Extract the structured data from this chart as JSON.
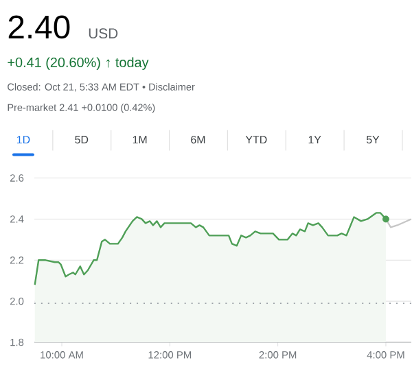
{
  "chart_data": {
    "type": "area",
    "title": "2.40",
    "subtitle": "USD",
    "annotations": [
      "+0.41 (20.60%) ↑ today",
      "Closed: Oct 21, 5:33 AM EDT • Disclaimer",
      "Pre-market 2.41 +0.0100 (0.42%)",
      "1D",
      "5D",
      "1M",
      "6M",
      "YTD",
      "1Y",
      "5Y"
    ],
    "x": [
      9.5,
      9.57,
      9.7,
      9.87,
      9.94,
      9.98,
      10.07,
      10.13,
      10.21,
      10.25,
      10.34,
      10.41,
      10.48,
      10.59,
      10.65,
      10.74,
      10.8,
      10.89,
      11.04,
      11.12,
      11.18,
      11.31,
      11.39,
      11.48,
      11.55,
      11.63,
      11.69,
      11.76,
      11.83,
      11.9,
      11.99,
      12.24,
      12.32,
      12.39,
      12.48,
      12.55,
      12.62,
      12.73,
      13.09,
      13.15,
      13.24,
      13.32,
      13.41,
      13.49,
      13.58,
      13.68,
      13.91,
      14.02,
      14.18,
      14.27,
      14.34,
      14.41,
      14.5,
      14.56,
      14.65,
      14.75,
      14.82,
      14.93,
      15.1,
      15.18,
      15.27,
      15.41,
      15.54,
      15.66,
      15.82,
      15.9,
      16.0
    ],
    "series": [
      {
        "color": "#4e9f56",
        "values": [
          2.08,
          2.2,
          2.2,
          2.19,
          2.19,
          2.18,
          2.12,
          2.13,
          2.14,
          2.13,
          2.17,
          2.13,
          2.15,
          2.2,
          2.2,
          2.29,
          2.3,
          2.28,
          2.28,
          2.31,
          2.34,
          2.39,
          2.41,
          2.4,
          2.38,
          2.39,
          2.37,
          2.39,
          2.36,
          2.38,
          2.38,
          2.38,
          2.38,
          2.38,
          2.36,
          2.37,
          2.36,
          2.32,
          2.32,
          2.28,
          2.27,
          2.32,
          2.31,
          2.32,
          2.34,
          2.33,
          2.33,
          2.3,
          2.3,
          2.33,
          2.32,
          2.35,
          2.34,
          2.38,
          2.37,
          2.38,
          2.36,
          2.32,
          2.32,
          2.33,
          2.32,
          2.41,
          2.39,
          2.4,
          2.43,
          2.43,
          2.4
        ]
      },
      {
        "type": "line",
        "color": "#c6c6c6",
        "x": [
          16.0,
          16.09,
          16.21,
          16.47
        ],
        "values": [
          2.4,
          2.36,
          2.37,
          2.4
        ]
      },
      {
        "type": "scatter",
        "color": "#4e9f56",
        "marker": "circle",
        "x": [
          16.0
        ],
        "values": [
          2.4
        ]
      }
    ],
    "xlim": [
      9.49,
      16.47
    ],
    "ylim": [
      1.8,
      2.6
    ],
    "xticks": [
      {
        "value": 10,
        "label": "10:00 AM"
      },
      {
        "value": 12,
        "label": "12:00 PM"
      },
      {
        "value": 14,
        "label": "2:00 PM"
      },
      {
        "value": 16,
        "label": "4:00 PM"
      }
    ],
    "yticks": [
      {
        "value": 1.8,
        "label": "1.8"
      },
      {
        "value": 2.0,
        "label": "2.0"
      },
      {
        "value": 2.2,
        "label": "2.2"
      },
      {
        "value": 2.4,
        "label": "2.4"
      },
      {
        "value": 2.6,
        "label": "2.6"
      }
    ],
    "grid": "y",
    "ref_lines": [
      {
        "axis": "y",
        "value": 1.99,
        "line_style": "dotted",
        "color": "#9aa0a6"
      }
    ]
  }
}
